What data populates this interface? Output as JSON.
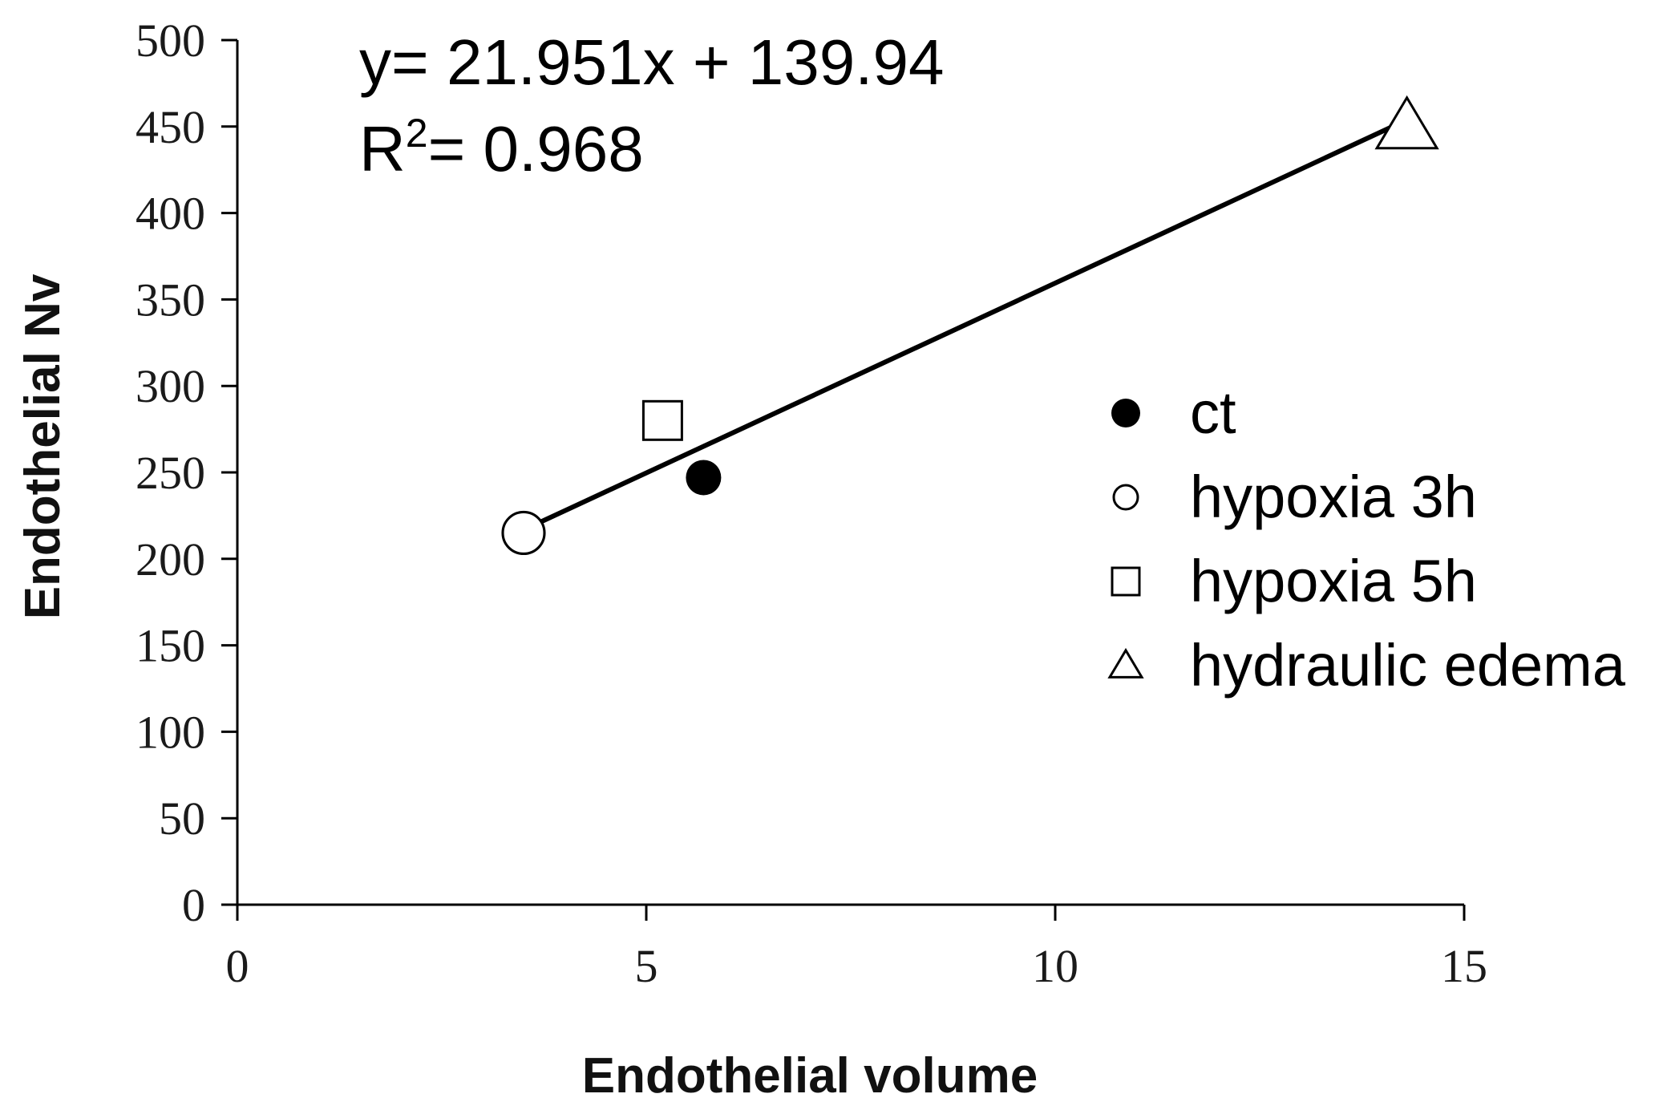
{
  "chart_data": {
    "type": "scatter",
    "title": "",
    "xlabel": "Endothelial volume",
    "ylabel": "Endothelial Nv",
    "xlim": [
      0,
      15
    ],
    "ylim": [
      0,
      500
    ],
    "x_ticks": [
      0,
      5,
      10,
      15
    ],
    "y_ticks": [
      0,
      50,
      100,
      150,
      200,
      250,
      300,
      350,
      400,
      450,
      500
    ],
    "grid": false,
    "legend_position": "right",
    "series": [
      {
        "name": "ct",
        "marker": "filled-circle",
        "x": 5.7,
        "y": 247
      },
      {
        "name": "hypoxia 3h",
        "marker": "open-circle",
        "x": 3.5,
        "y": 215
      },
      {
        "name": "hypoxia 5h",
        "marker": "open-square",
        "x": 5.2,
        "y": 280
      },
      {
        "name": "hydraulic edema",
        "marker": "open-triangle",
        "x": 14.3,
        "y": 450
      }
    ],
    "trendline": {
      "equation": "y= 21.951x + 139.94",
      "r_squared_label": "R",
      "r_squared_sup": "2",
      "r_squared_value": "= 0.968",
      "slope": 21.951,
      "intercept": 139.94,
      "x_range": [
        3.5,
        14.3
      ]
    },
    "colors": {
      "ink": "#000000"
    }
  }
}
